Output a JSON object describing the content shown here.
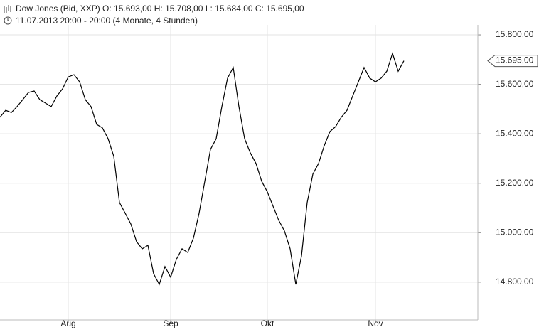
{
  "chart_data": {
    "type": "line",
    "title": "Dow Jones (Bid, XXP)  O: 15.693,00  H: 15.708,00  L: 15.684,00  C: 15.695,00",
    "subtitle": "11.07.2013 20:00 - 20:00 (4 Monate, 4 Stunden)",
    "categories": [
      null,
      null,
      null,
      null,
      null,
      null,
      null,
      null,
      null,
      null,
      null,
      null,
      "Aug",
      null,
      null,
      null,
      null,
      null,
      null,
      null,
      null,
      null,
      null,
      null,
      null,
      null,
      null,
      null,
      null,
      null,
      "Sep",
      null,
      null,
      null,
      null,
      null,
      null,
      null,
      null,
      null,
      null,
      null,
      null,
      null,
      null,
      null,
      null,
      "Okt",
      null,
      null,
      null,
      null,
      null,
      null,
      null,
      null,
      null,
      null,
      null,
      null,
      null,
      null,
      null,
      null,
      null,
      null,
      "Nov",
      null,
      null,
      null,
      null,
      null
    ],
    "series": [
      {
        "name": "Dow Jones",
        "color": "#000000",
        "values": [
          15467,
          15495,
          15486,
          15510,
          15538,
          15567,
          15573,
          15538,
          15524,
          15510,
          15553,
          15582,
          15630,
          15639,
          15610,
          15538,
          15510,
          15438,
          15424,
          15380,
          15309,
          15122,
          15079,
          15035,
          14964,
          14935,
          14949,
          14834,
          14791,
          14863,
          14820,
          14892,
          14935,
          14920,
          14978,
          15079,
          15208,
          15337,
          15380,
          15510,
          15625,
          15668,
          15510,
          15380,
          15323,
          15280,
          15208,
          15165,
          15107,
          15050,
          15007,
          14935,
          14791,
          14906,
          15122,
          15237,
          15280,
          15352,
          15409,
          15429,
          15467,
          15495,
          15553,
          15610,
          15668,
          15625,
          15610,
          15625,
          15653,
          15725,
          15653,
          15695
        ]
      }
    ],
    "ylim": [
      14676,
      15826
    ],
    "yticks": [
      {
        "value": 14800,
        "label": "14.800,00"
      },
      {
        "value": 15000,
        "label": "15.000,00"
      },
      {
        "value": 15200,
        "label": "15.200,00"
      },
      {
        "value": 15400,
        "label": "15.400,00"
      },
      {
        "value": 15600,
        "label": "15.600,00"
      },
      {
        "value": 15800,
        "label": "15.800,00"
      }
    ],
    "current_price": {
      "value": 15695,
      "label": "15.695,00"
    },
    "grid": true
  }
}
